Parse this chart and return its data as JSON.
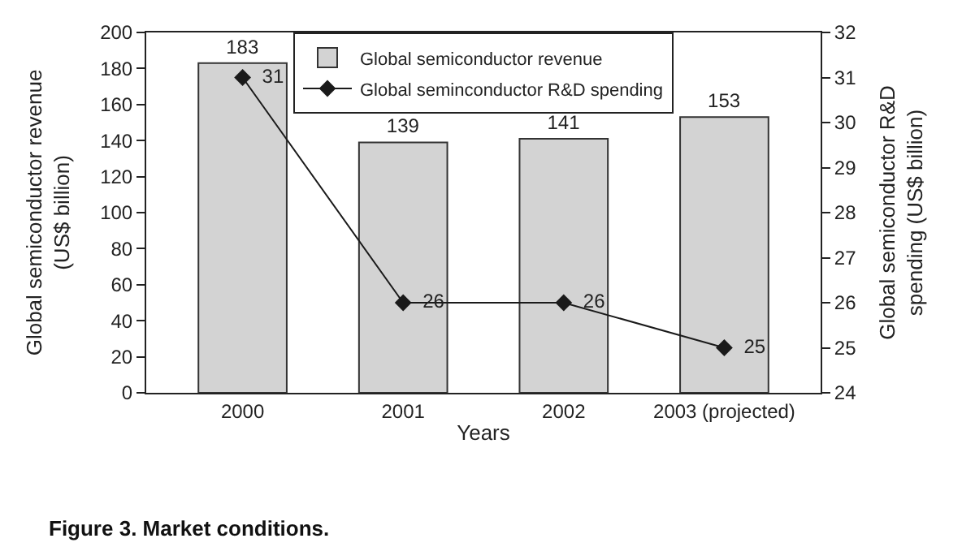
{
  "chart_data": {
    "type": "bar",
    "xlabel": "Years",
    "ylabel": "Global semiconductor revenue (US$ billion)",
    "y2label": "Global semiconductor R&D spending (US$ billion)",
    "categories": [
      "2000",
      "2001",
      "2002",
      "2003 (projected)"
    ],
    "series": [
      {
        "name": "Global semiconductor revenue",
        "color": "#d3d3d3",
        "values": [
          183,
          139,
          141,
          153
        ]
      },
      {
        "name": "Global seminconductor R&D spending",
        "type": "line",
        "axis": "y2",
        "color": "#1a1a1a",
        "marker": "diamond",
        "values": [
          31,
          26,
          26,
          25
        ]
      }
    ],
    "ylim": [
      0,
      200
    ],
    "yticks": [
      0,
      20,
      40,
      60,
      80,
      100,
      120,
      140,
      160,
      180,
      200
    ],
    "y2lim": [
      24,
      32
    ],
    "y2ticks": [
      24,
      25,
      26,
      27,
      28,
      29,
      30,
      31,
      32
    ],
    "data_labels": true,
    "legend": "top",
    "annotations": [
      "Figure 3. Market conditions."
    ]
  }
}
